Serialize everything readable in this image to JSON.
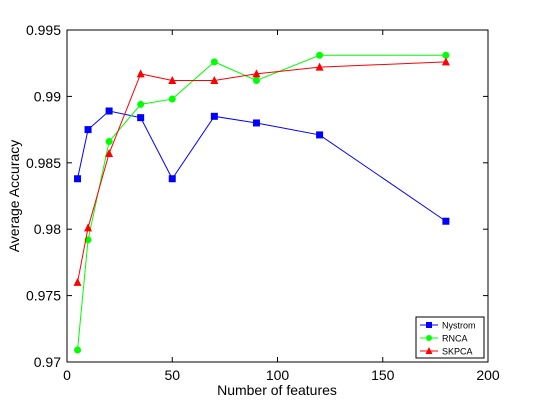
{
  "chart_data": {
    "type": "line",
    "title": "",
    "xlabel": "Number of features",
    "ylabel": "Average Accuracy",
    "xlim": [
      0,
      200
    ],
    "ylim": [
      0.97,
      0.995
    ],
    "x_ticks": [
      0,
      50,
      100,
      150,
      200
    ],
    "y_ticks": [
      0.97,
      0.975,
      0.98,
      0.985,
      0.99,
      0.995
    ],
    "x_tick_labels": [
      "0",
      "50",
      "100",
      "150",
      "200"
    ],
    "y_tick_labels": [
      "0.97",
      "0.975",
      "0.98",
      "0.985",
      "0.99",
      "0.995"
    ],
    "grid": false,
    "legend_position": "bottom-right",
    "series": [
      {
        "name": "Nystrom",
        "color": "#0000ff",
        "marker": "square",
        "x": [
          5,
          10,
          20,
          35,
          50,
          70,
          90,
          120,
          180
        ],
        "y": [
          0.9838,
          0.9875,
          0.9889,
          0.9884,
          0.9838,
          0.9885,
          0.988,
          0.9871,
          0.9806
        ]
      },
      {
        "name": "RNCA",
        "color": "#00ff00",
        "marker": "circle",
        "x": [
          5,
          10,
          20,
          35,
          50,
          70,
          90,
          120,
          180
        ],
        "y": [
          0.9709,
          0.9792,
          0.9866,
          0.9894,
          0.9898,
          0.9926,
          0.9912,
          0.9931,
          0.9931
        ]
      },
      {
        "name": "SKPCA",
        "color": "#ff0000",
        "marker": "triangle",
        "x": [
          5,
          10,
          20,
          35,
          50,
          70,
          90,
          120,
          180
        ],
        "y": [
          0.976,
          0.9801,
          0.9857,
          0.9917,
          0.9912,
          0.9912,
          0.9917,
          0.9922,
          0.9926
        ]
      }
    ]
  }
}
